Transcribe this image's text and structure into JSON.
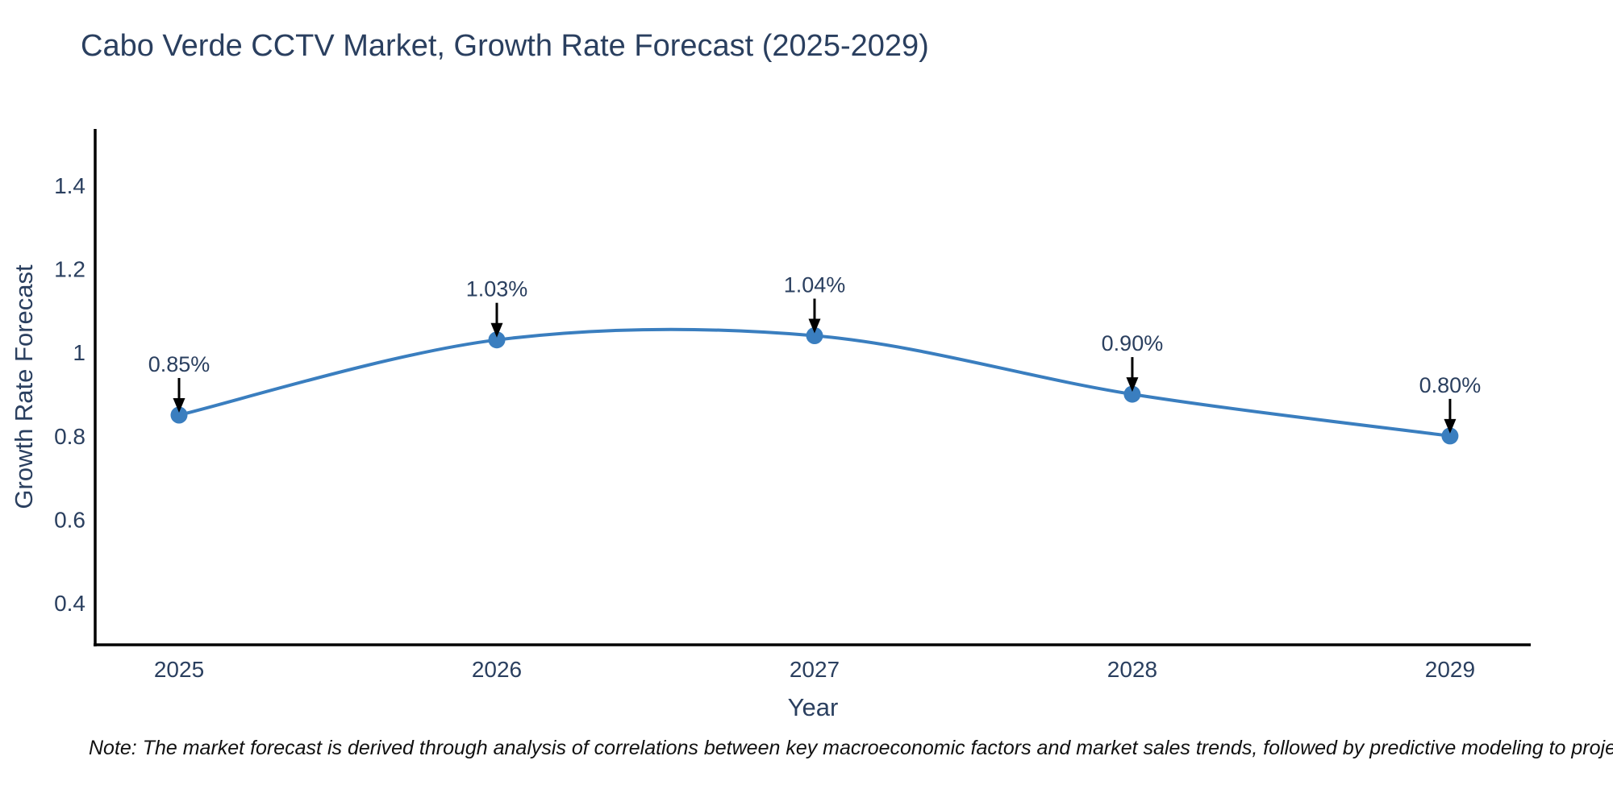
{
  "note": "Note: The market forecast is derived through analysis of correlations between key macroeconomic factors and market sales trends, followed by predictive modeling to project future sales",
  "chart_data": {
    "type": "line",
    "title": "Cabo Verde CCTV Market, Growth Rate Forecast (2025-2029)",
    "xlabel": "Year",
    "ylabel": "Growth Rate Forecast",
    "x": [
      2025,
      2026,
      2027,
      2028,
      2029
    ],
    "y": [
      0.85,
      1.03,
      1.04,
      0.9,
      0.8
    ],
    "point_labels": [
      "0.85%",
      "1.03%",
      "1.04%",
      "0.90%",
      "0.80%"
    ],
    "x_tick_labels": [
      "2025",
      "2026",
      "2027",
      "2028",
      "2029"
    ],
    "y_ticks": [
      0.4,
      0.6,
      0.8,
      1.0,
      1.2,
      1.4
    ],
    "y_tick_labels": [
      "0.4",
      "0.6",
      "0.8",
      "1",
      "1.2",
      "1.4"
    ],
    "xlim": [
      2024.736,
      2029.254
    ],
    "ylim": [
      0.3,
      1.535
    ],
    "line_shape": "spline",
    "grid": false,
    "legend": "none",
    "colors": {
      "line": "#3a7ebf",
      "marker": "#3a7ebf",
      "axis": "#000000",
      "text": "#2a3f5f",
      "annotation_arrow": "#000000"
    }
  }
}
